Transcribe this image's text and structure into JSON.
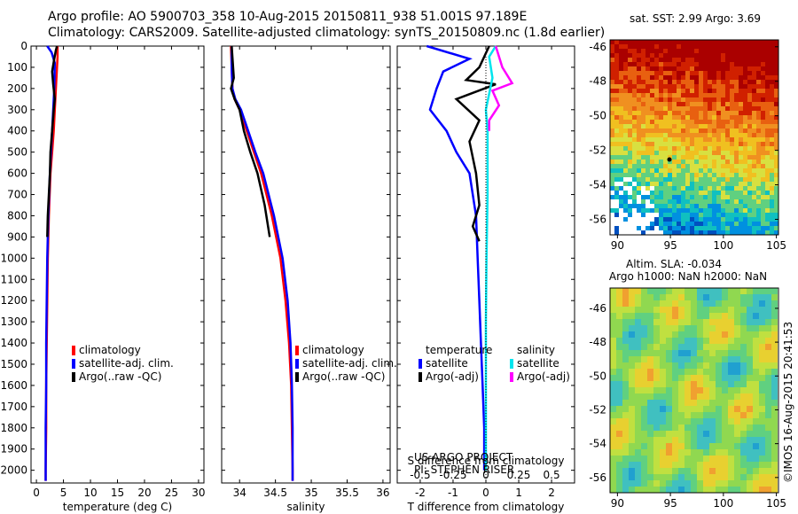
{
  "header": {
    "line1": "Argo profile: AO 5900703_358 10-Aug-2015 20150811_938 51.001S 97.189E",
    "line2": "Climatology: CARS2009. Satellite-adjusted climatology: synTS_20150809.nc (1.8d earlier)"
  },
  "credits": {
    "project": "US ARGO PROJECT",
    "pi": "PI: STEPHEN RISER",
    "stamp": "©IMOS 16-Aug-2015 20:41:53"
  },
  "colors": {
    "climatology": "#ff0000",
    "satellite": "#0000ff",
    "argo": "#000000",
    "sal_satellite": "#00e5ee",
    "sal_argo": "#ff00ff"
  },
  "chart_data": [
    {
      "id": "temperature",
      "type": "line",
      "xlabel": "temperature (deg C)",
      "xlim": [
        -1,
        31
      ],
      "xticks": [
        0,
        5,
        10,
        15,
        20,
        25,
        30
      ],
      "xtick_labels": [
        "0",
        "5",
        "10",
        "15",
        "20",
        "25",
        "30"
      ],
      "ylim": [
        0,
        2060
      ],
      "yticks": [
        0,
        100,
        200,
        300,
        400,
        500,
        600,
        700,
        800,
        900,
        1000,
        1100,
        1200,
        1300,
        1400,
        1500,
        1600,
        1700,
        1800,
        1900,
        2000
      ],
      "ytick_labels": [
        "0",
        "100",
        "200",
        "300",
        "400",
        "500",
        "600",
        "700",
        "800",
        "900",
        "1000",
        "1100",
        "1200",
        "1300",
        "1400",
        "1500",
        "1600",
        "1700",
        "1800",
        "1900",
        "2000"
      ],
      "legend": [
        "climatology",
        "satellite-adj. clim.",
        "Argo(..raw -QC)"
      ],
      "series": [
        {
          "name": "climatology",
          "color": "#ff0000",
          "x": [
            3.9,
            3.9,
            3.8,
            3.6,
            3.4,
            3.2,
            2.9,
            2.6,
            2.3,
            2.1,
            2.0,
            1.9,
            1.8,
            1.8,
            1.7,
            1.7
          ],
          "y": [
            0,
            50,
            100,
            200,
            300,
            400,
            500,
            600,
            800,
            1000,
            1200,
            1400,
            1600,
            1800,
            2000,
            2050
          ]
        },
        {
          "name": "satellite-adj. clim.",
          "color": "#0000ff",
          "x": [
            2.0,
            2.8,
            3.4,
            3.3,
            3.1,
            2.9,
            2.7,
            2.5,
            2.2,
            2.0,
            1.9,
            1.8,
            1.8,
            1.7,
            1.7,
            1.7
          ],
          "y": [
            0,
            30,
            80,
            200,
            300,
            400,
            500,
            600,
            800,
            1000,
            1200,
            1400,
            1600,
            1800,
            2000,
            2050
          ]
        },
        {
          "name": "Argo(..raw -QC)",
          "color": "#000000",
          "x": [
            3.8,
            3.6,
            3.3,
            2.9,
            3.1,
            3.4,
            3.2,
            2.9,
            2.6,
            2.5,
            2.3,
            2.1,
            2.0
          ],
          "y": [
            0,
            20,
            60,
            120,
            180,
            250,
            300,
            400,
            500,
            600,
            700,
            800,
            900
          ]
        }
      ]
    },
    {
      "id": "salinity",
      "type": "line",
      "xlabel": "salinity",
      "xlim": [
        33.75,
        36.1
      ],
      "xticks": [
        34,
        34.5,
        35,
        35.5,
        36
      ],
      "xtick_labels": [
        "34",
        "34.5",
        "35",
        "35.5",
        "36"
      ],
      "ylim": [
        0,
        2060
      ],
      "legend": [
        "climatology",
        "satellite-adj. clim.",
        "Argo(..raw -QC)"
      ],
      "series": [
        {
          "name": "climatology",
          "color": "#ff0000",
          "x": [
            33.88,
            33.89,
            33.9,
            33.93,
            34.0,
            34.1,
            34.2,
            34.3,
            34.45,
            34.57,
            34.64,
            34.69,
            34.72,
            34.73,
            34.74,
            34.74
          ],
          "y": [
            0,
            100,
            200,
            250,
            300,
            400,
            500,
            600,
            800,
            1000,
            1200,
            1400,
            1600,
            1800,
            2000,
            2050
          ]
        },
        {
          "name": "satellite-adj. clim.",
          "color": "#0000ff",
          "x": [
            33.89,
            33.89,
            33.9,
            33.94,
            34.02,
            34.12,
            34.22,
            34.33,
            34.48,
            34.6,
            34.67,
            34.71,
            34.73,
            34.74,
            34.74,
            34.74
          ],
          "y": [
            0,
            100,
            200,
            250,
            300,
            400,
            500,
            600,
            800,
            1000,
            1200,
            1400,
            1600,
            1800,
            2000,
            2050
          ]
        },
        {
          "name": "Argo(..raw -QC)",
          "color": "#000000",
          "x": [
            33.89,
            33.9,
            33.92,
            33.88,
            33.93,
            34.0,
            34.06,
            34.15,
            34.25,
            34.35,
            34.42
          ],
          "y": [
            0,
            50,
            150,
            200,
            250,
            300,
            400,
            500,
            600,
            750,
            900
          ]
        }
      ]
    },
    {
      "id": "difference",
      "type": "line",
      "xlabel": "T difference from climatology",
      "xlabel_top": "S difference from climatology",
      "xlim": [
        -2.7,
        2.7
      ],
      "xticks": [
        -2,
        -1,
        0,
        1,
        2
      ],
      "xtick_labels": [
        "-2",
        "-1",
        "0",
        "1",
        "2"
      ],
      "sticks": [
        -0.5,
        -0.25,
        0,
        0.25,
        0.5
      ],
      "stick_labels": [
        "-0.5",
        "-0.25",
        "0",
        "0.25",
        "0.5"
      ],
      "ylim": [
        0,
        2060
      ],
      "legend": {
        "temperature_heading": "temperature",
        "salinity_heading": "salinity",
        "temperature": [
          "satellite",
          "Argo(-adj)"
        ],
        "salinity": [
          "satellite",
          "Argo(-adj)"
        ]
      },
      "series": [
        {
          "name": "T satellite",
          "color": "#0000ff",
          "x": [
            -1.8,
            -0.5,
            -1.3,
            -1.5,
            -1.7,
            -1.2,
            -0.9,
            -0.5,
            -0.3,
            -0.25,
            -0.2,
            -0.15,
            -0.1,
            -0.05,
            -0.05,
            -0.05
          ],
          "y": [
            0,
            60,
            120,
            200,
            300,
            400,
            500,
            600,
            800,
            1000,
            1200,
            1400,
            1600,
            1800,
            1900,
            2000
          ]
        },
        {
          "name": "T Argo(-adj)",
          "color": "#000000",
          "x": [
            0.1,
            -0.2,
            -0.6,
            0.3,
            -0.9,
            -0.2,
            -0.5,
            -0.3,
            -0.2,
            -0.4,
            -0.2
          ],
          "y": [
            0,
            100,
            160,
            180,
            250,
            350,
            450,
            600,
            750,
            850,
            920
          ]
        },
        {
          "name": "S satellite",
          "color": "#00e5ee",
          "x": [
            0.3,
            0.1,
            0.2,
            0.0,
            0.05,
            0.05,
            0.05,
            0.02,
            0.0,
            0.0,
            0.0
          ],
          "y": [
            0,
            50,
            150,
            300,
            400,
            500,
            700,
            1000,
            1300,
            1600,
            2000
          ]
        },
        {
          "name": "S Argo(-adj)",
          "color": "#ff00ff",
          "x": [
            0.3,
            0.5,
            0.8,
            0.2,
            0.4,
            0.1,
            0.1
          ],
          "y": [
            0,
            100,
            175,
            210,
            280,
            350,
            400
          ]
        }
      ]
    },
    {
      "id": "sst-map",
      "type": "heatmap",
      "title": "sat. SST: 2.99 Argo: 3.69",
      "xticks": [
        90,
        95,
        100,
        105
      ],
      "xtick_labels": [
        "90",
        "95",
        "100",
        "105"
      ],
      "yticks": [
        -46,
        -48,
        -50,
        -52,
        -54,
        -56
      ],
      "ytick_labels": [
        "-46",
        "-48",
        "-50",
        "-52",
        "-54",
        "-56"
      ]
    },
    {
      "id": "sla-map",
      "type": "heatmap",
      "title": "Altim. SLA: -0.034",
      "subtitle": "Argo h1000: NaN h2000: NaN",
      "xticks": [
        90,
        95,
        100,
        105
      ],
      "xtick_labels": [
        "90",
        "95",
        "100",
        "105"
      ],
      "yticks": [
        -46,
        -48,
        -50,
        -52,
        -54,
        -56
      ],
      "ytick_labels": [
        "-46",
        "-48",
        "-50",
        "-52",
        "-54",
        "-56"
      ]
    }
  ]
}
